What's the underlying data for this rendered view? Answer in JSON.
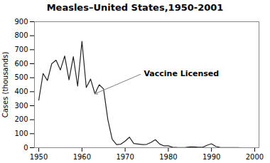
{
  "chart_data": {
    "type": "line",
    "title": "Measles–United States,1950-2001",
    "ylabel": "Cases (thousands)",
    "x": [
      1950,
      1951,
      1952,
      1953,
      1954,
      1955,
      1956,
      1957,
      1958,
      1959,
      1960,
      1961,
      1962,
      1963,
      1964,
      1965,
      1966,
      1967,
      1968,
      1969,
      1970,
      1971,
      1972,
      1973,
      1974,
      1975,
      1976,
      1977,
      1978,
      1979,
      1980,
      1981,
      1982,
      1983,
      1984,
      1985,
      1986,
      1987,
      1988,
      1989,
      1990,
      1991,
      1992,
      1993,
      1994,
      1995,
      1996,
      1997,
      1998,
      1999,
      2000,
      2001
    ],
    "values": [
      340,
      530,
      480,
      600,
      625,
      555,
      655,
      485,
      650,
      440,
      760,
      430,
      490,
      385,
      450,
      420,
      200,
      60,
      22,
      25,
      47,
      75,
      30,
      26,
      22,
      24,
      38,
      57,
      26,
      13,
      13,
      3,
      1.7,
      1.4,
      2.6,
      6.3,
      6.2,
      3.7,
      3.4,
      18,
      28,
      9,
      2.2,
      0.3,
      0.3,
      0.3,
      0.5,
      0.1,
      0.1,
      0.1,
      0.1,
      0.1
    ],
    "color": "#222222",
    "xlim": [
      1949,
      2001
    ],
    "xticks": [
      1950,
      1960,
      1970,
      1980,
      1990,
      2000
    ],
    "ylim": [
      0,
      900
    ],
    "yticks": [
      0,
      100,
      200,
      300,
      400,
      500,
      600,
      700,
      800,
      900
    ],
    "grid": false,
    "annotations": [
      {
        "text": "Vaccine Licensed",
        "x": 1963,
        "y": 385,
        "text_x": 1974,
        "text_y": 530
      }
    ]
  }
}
